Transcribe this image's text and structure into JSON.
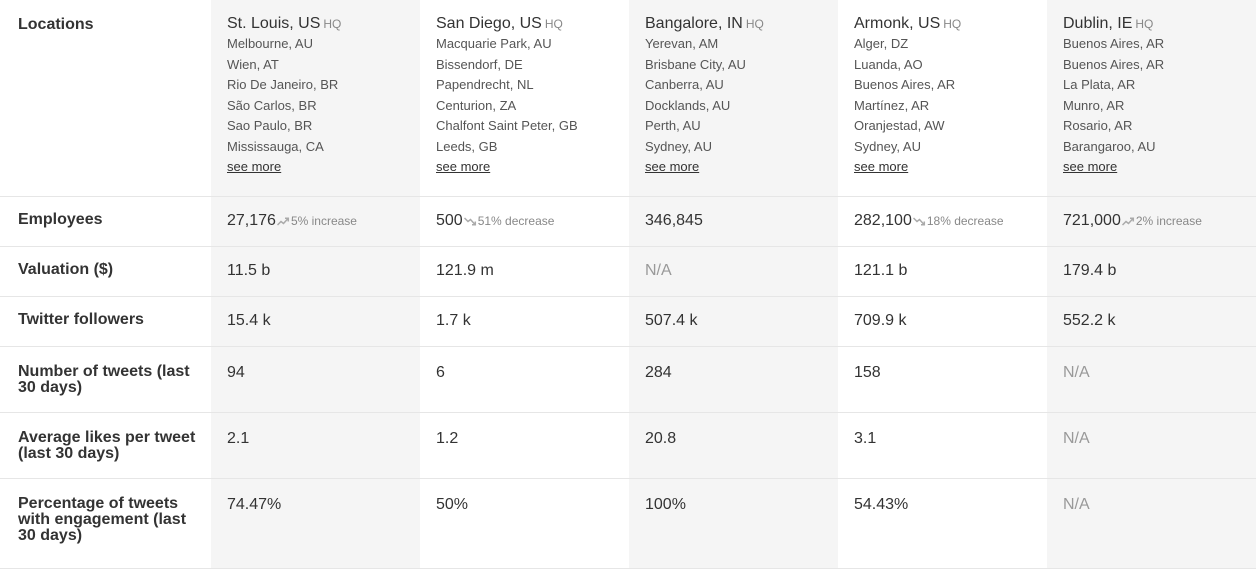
{
  "labels": {
    "locations": "Locations",
    "employees": "Employees",
    "valuation": "Valuation ($)",
    "twitter": "Twitter followers",
    "tweets": "Number of tweets (last 30 days)",
    "likes": "Average likes per tweet (last 30 days)",
    "engagement": "Percentage of tweets with engagement (last 30 days)"
  },
  "hq_label": "HQ",
  "see_more": "see more",
  "companies": [
    {
      "hq": "St. Louis, US",
      "locations": [
        "Melbourne, AU",
        "Wien, AT",
        "Rio De Janeiro, BR",
        "São Carlos, BR",
        "Sao Paulo, BR",
        "Mississauga, CA"
      ],
      "employees": "27,176",
      "trend": "5% increase",
      "trend_dir": "up",
      "valuation": "11.5 b",
      "twitter": "15.4 k",
      "tweets": "94",
      "likes": "2.1",
      "engagement": "74.47%"
    },
    {
      "hq": "San Diego, US",
      "locations": [
        "Macquarie Park, AU",
        "Bissendorf, DE",
        "Papendrecht, NL",
        "Centurion, ZA",
        "Chalfont Saint Peter, GB",
        "Leeds, GB"
      ],
      "employees": "500",
      "trend": "51% decrease",
      "trend_dir": "down",
      "valuation": "121.9 m",
      "twitter": "1.7 k",
      "tweets": "6",
      "likes": "1.2",
      "engagement": "50%"
    },
    {
      "hq": "Bangalore, IN",
      "locations": [
        "Yerevan, AM",
        "Brisbane City, AU",
        "Canberra, AU",
        "Docklands, AU",
        "Perth, AU",
        "Sydney, AU"
      ],
      "employees": "346,845",
      "trend": "",
      "trend_dir": "",
      "valuation": "N/A",
      "twitter": "507.4 k",
      "tweets": "284",
      "likes": "20.8",
      "engagement": "100%"
    },
    {
      "hq": "Armonk, US",
      "locations": [
        "Alger, DZ",
        "Luanda, AO",
        "Buenos Aires, AR",
        "Martínez, AR",
        "Oranjestad, AW",
        "Sydney, AU"
      ],
      "employees": "282,100",
      "trend": "18% decrease",
      "trend_dir": "down",
      "valuation": "121.1 b",
      "twitter": "709.9 k",
      "tweets": "158",
      "likes": "3.1",
      "engagement": "54.43%"
    },
    {
      "hq": "Dublin, IE",
      "locations": [
        "Buenos Aires, AR",
        "Buenos Aires, AR",
        "La Plata, AR",
        "Munro, AR",
        "Rosario, AR",
        "Barangaroo, AU"
      ],
      "employees": "721,000",
      "trend": "2% increase",
      "trend_dir": "up",
      "valuation": "179.4 b",
      "twitter": "552.2 k",
      "tweets": "N/A",
      "likes": "N/A",
      "engagement": "N/A"
    }
  ]
}
